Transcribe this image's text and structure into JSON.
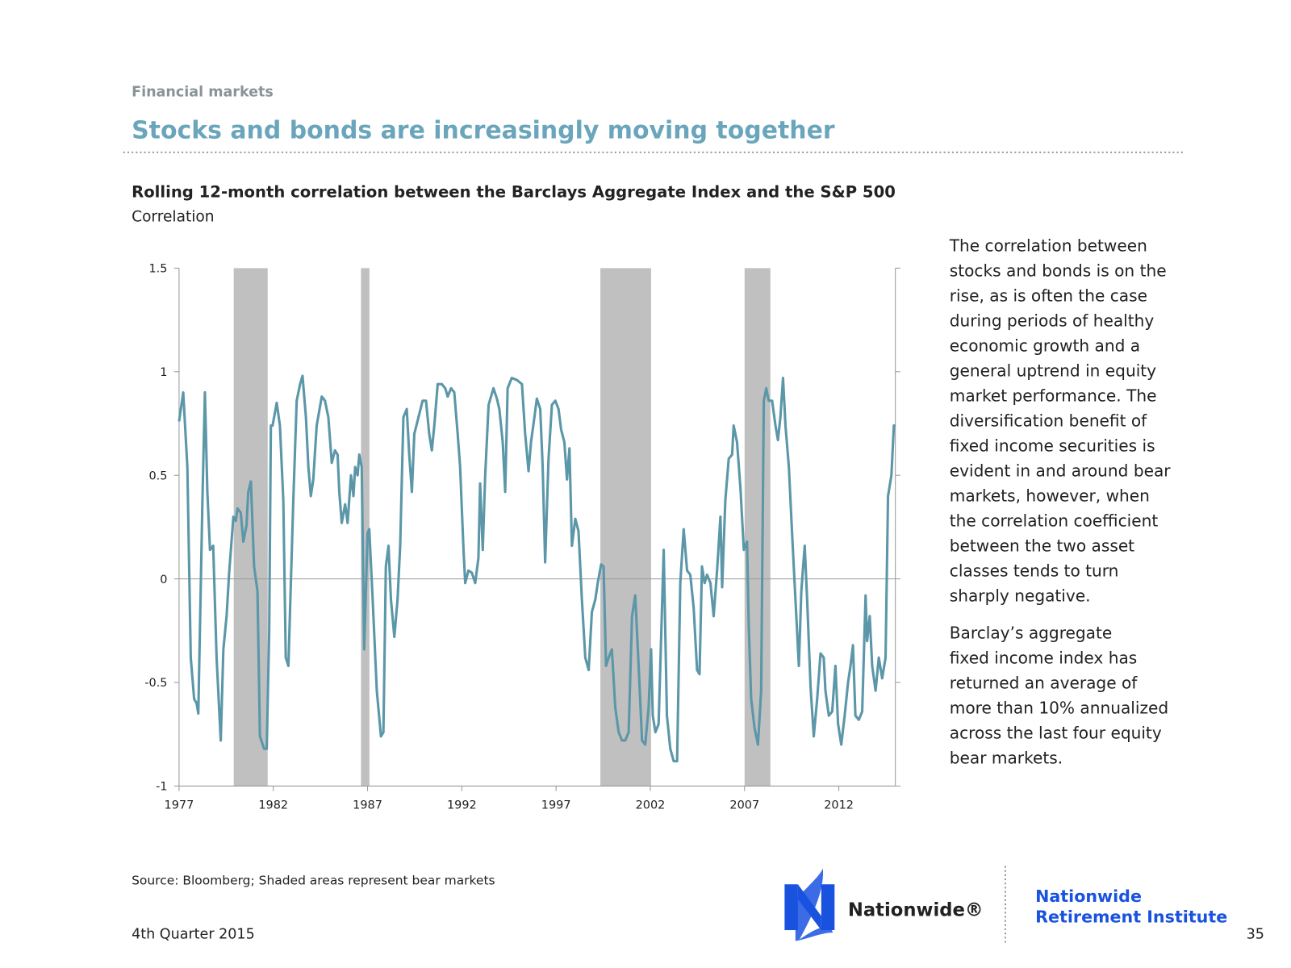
{
  "header": {
    "section": "Financial markets",
    "title": "Stocks and bonds are increasingly moving together"
  },
  "chart_data": {
    "type": "line",
    "title": "Rolling 12-month correlation between the Barclays Aggregate Index and the S&P 500",
    "y_label": "Correlation",
    "color": "#5b97a8",
    "shade_color": "#c0c0c0",
    "xlim": [
      1977,
      2015
    ],
    "xticks": [
      1977,
      1982,
      1987,
      1992,
      1997,
      2002,
      2007,
      2012
    ],
    "ylim": [
      -1,
      1.5
    ],
    "yticks": [
      1.5,
      1,
      0.5,
      0,
      -0.5,
      -1
    ],
    "bear_markets": [
      [
        1979.9,
        1981.7
      ],
      [
        1986.65,
        1987.1
      ],
      [
        1999.35,
        2002.04
      ],
      [
        2007.0,
        2008.37
      ]
    ],
    "x": [
      1977.0,
      1977.22,
      1977.44,
      1977.62,
      1977.8,
      1977.93,
      1978.02,
      1978.24,
      1978.37,
      1978.5,
      1978.64,
      1978.81,
      1978.99,
      1979.21,
      1979.35,
      1979.52,
      1979.65,
      1979.88,
      1980.01,
      1980.1,
      1980.27,
      1980.41,
      1980.58,
      1980.67,
      1980.81,
      1980.98,
      1981.16,
      1981.29,
      1981.51,
      1981.65,
      1981.78,
      1981.87,
      1981.96,
      1982.18,
      1982.35,
      1982.53,
      1982.66,
      1982.8,
      1982.93,
      1983.06,
      1983.24,
      1983.42,
      1983.55,
      1983.73,
      1983.86,
      1983.99,
      1984.12,
      1984.3,
      1984.57,
      1984.74,
      1984.92,
      1985.1,
      1985.27,
      1985.41,
      1985.5,
      1985.63,
      1985.81,
      1985.94,
      1986.12,
      1986.25,
      1986.34,
      1986.47,
      1986.56,
      1986.69,
      1986.82,
      1987.0,
      1987.09,
      1987.27,
      1987.49,
      1987.71,
      1987.84,
      1987.97,
      1988.11,
      1988.24,
      1988.42,
      1988.59,
      1988.73,
      1988.9,
      1989.08,
      1989.21,
      1989.35,
      1989.48,
      1989.7,
      1989.92,
      1990.1,
      1990.27,
      1990.41,
      1990.54,
      1990.72,
      1990.94,
      1991.12,
      1991.25,
      1991.43,
      1991.6,
      1991.78,
      1991.91,
      1992.09,
      1992.18,
      1992.35,
      1992.53,
      1992.71,
      1992.88,
      1992.97,
      1993.11,
      1993.24,
      1993.42,
      1993.68,
      1993.86,
      1993.99,
      1994.17,
      1994.3,
      1994.43,
      1994.65,
      1994.92,
      1995.19,
      1995.36,
      1995.54,
      1995.67,
      1995.85,
      1995.98,
      1996.16,
      1996.29,
      1996.42,
      1996.6,
      1996.78,
      1996.96,
      1997.13,
      1997.27,
      1997.44,
      1997.58,
      1997.71,
      1997.84,
      1998.02,
      1998.19,
      1998.37,
      1998.55,
      1998.73,
      1998.9,
      1999.08,
      1999.21,
      1999.39,
      1999.52,
      1999.65,
      1999.79,
      1999.96,
      2000.14,
      2000.32,
      2000.5,
      2000.67,
      2000.85,
      2001.03,
      2001.2,
      2001.38,
      2001.56,
      2001.73,
      2001.91,
      2002.04,
      2002.13,
      2002.27,
      2002.44,
      2002.71,
      2002.88,
      2003.06,
      2003.24,
      2003.42,
      2003.59,
      2003.77,
      2003.95,
      2004.12,
      2004.3,
      2004.48,
      2004.61,
      2004.74,
      2004.88,
      2005.01,
      2005.19,
      2005.36,
      2005.54,
      2005.72,
      2005.81,
      2005.98,
      2006.16,
      2006.34,
      2006.42,
      2006.6,
      2006.78,
      2006.96,
      2007.13,
      2007.22,
      2007.35,
      2007.53,
      2007.71,
      2007.88,
      2008.02,
      2008.15,
      2008.28,
      2008.46,
      2008.64,
      2008.77,
      2008.9,
      2009.04,
      2009.17,
      2009.35,
      2009.52,
      2009.7,
      2009.88,
      2010.01,
      2010.19,
      2010.32,
      2010.5,
      2010.67,
      2010.85,
      2011.03,
      2011.2,
      2011.29,
      2011.47,
      2011.65,
      2011.82,
      2011.96,
      2012.13,
      2012.31,
      2012.49,
      2012.62,
      2012.75,
      2012.88,
      2013.06,
      2013.24,
      2013.42,
      2013.5,
      2013.64,
      2013.77,
      2013.95,
      2014.12,
      2014.3,
      2014.48,
      2014.61,
      2014.79,
      2014.92,
      2015.0
    ],
    "values": [
      0.76,
      0.9,
      0.54,
      -0.38,
      -0.58,
      -0.6,
      -0.65,
      0.38,
      0.9,
      0.42,
      0.14,
      0.16,
      -0.38,
      -0.78,
      -0.34,
      -0.18,
      0.02,
      0.3,
      0.28,
      0.34,
      0.32,
      0.18,
      0.26,
      0.42,
      0.47,
      0.06,
      -0.06,
      -0.76,
      -0.82,
      -0.82,
      -0.26,
      0.74,
      0.74,
      0.85,
      0.74,
      0.38,
      -0.38,
      -0.42,
      -0.02,
      0.38,
      0.86,
      0.94,
      0.98,
      0.78,
      0.54,
      0.4,
      0.48,
      0.74,
      0.88,
      0.86,
      0.78,
      0.56,
      0.62,
      0.6,
      0.42,
      0.27,
      0.36,
      0.27,
      0.5,
      0.4,
      0.54,
      0.5,
      0.6,
      0.54,
      -0.34,
      0.22,
      0.24,
      -0.1,
      -0.54,
      -0.76,
      -0.74,
      0.06,
      0.16,
      -0.1,
      -0.28,
      -0.1,
      0.16,
      0.78,
      0.82,
      0.6,
      0.42,
      0.7,
      0.78,
      0.86,
      0.86,
      0.7,
      0.62,
      0.74,
      0.94,
      0.94,
      0.92,
      0.88,
      0.92,
      0.9,
      0.7,
      0.54,
      0.14,
      -0.02,
      0.04,
      0.03,
      -0.02,
      0.1,
      0.46,
      0.14,
      0.5,
      0.84,
      0.92,
      0.87,
      0.82,
      0.66,
      0.42,
      0.92,
      0.97,
      0.96,
      0.94,
      0.7,
      0.52,
      0.66,
      0.78,
      0.87,
      0.82,
      0.54,
      0.08,
      0.58,
      0.84,
      0.86,
      0.82,
      0.72,
      0.66,
      0.48,
      0.63,
      0.16,
      0.29,
      0.23,
      -0.1,
      -0.38,
      -0.44,
      -0.16,
      -0.1,
      -0.02,
      0.07,
      0.06,
      -0.42,
      -0.38,
      -0.34,
      -0.62,
      -0.74,
      -0.78,
      -0.78,
      -0.74,
      -0.18,
      -0.08,
      -0.42,
      -0.78,
      -0.8,
      -0.62,
      -0.34,
      -0.66,
      -0.74,
      -0.7,
      0.14,
      -0.66,
      -0.82,
      -0.88,
      -0.88,
      -0.02,
      0.24,
      0.04,
      0.02,
      -0.14,
      -0.44,
      -0.46,
      0.06,
      -0.02,
      0.02,
      -0.02,
      -0.18,
      0.04,
      0.3,
      -0.04,
      0.38,
      0.58,
      0.6,
      0.74,
      0.66,
      0.44,
      0.14,
      0.18,
      -0.22,
      -0.58,
      -0.72,
      -0.8,
      -0.54,
      0.86,
      0.92,
      0.86,
      0.86,
      0.74,
      0.67,
      0.78,
      0.97,
      0.74,
      0.54,
      0.22,
      -0.1,
      -0.42,
      -0.06,
      0.16,
      -0.1,
      -0.52,
      -0.76,
      -0.58,
      -0.36,
      -0.38,
      -0.54,
      -0.66,
      -0.64,
      -0.42,
      -0.7,
      -0.8,
      -0.66,
      -0.5,
      -0.42,
      -0.32,
      -0.66,
      -0.68,
      -0.64,
      -0.08,
      -0.3,
      -0.18,
      -0.42,
      -0.54,
      -0.38,
      -0.48,
      -0.38,
      0.4,
      0.5,
      0.74,
      0.74
    ]
  },
  "commentary": [
    [
      "The correlation between",
      "stocks and bonds is on the",
      "rise, as is often the case",
      "during periods of healthy",
      "economic growth and a",
      "general uptrend in equity",
      "market performance. The",
      "diversification benefit of",
      "fixed income securities is",
      "evident in and around bear",
      "markets, however, when",
      "the correlation coefficient",
      "between the two asset",
      "classes tends to turn",
      "sharply negative."
    ],
    [
      "Barclay’s aggregate",
      "fixed income index has",
      "returned an average of",
      "more than 10% annualized",
      "across the last four equity",
      "bear markets."
    ]
  ],
  "footer": {
    "source": "Source: Bloomberg; Shaded areas represent bear markets",
    "date": "4th Quarter 2015",
    "page": 35,
    "logo": "Nationwide®",
    "institute": [
      "Nationwide",
      "Retirement Institute"
    ]
  }
}
